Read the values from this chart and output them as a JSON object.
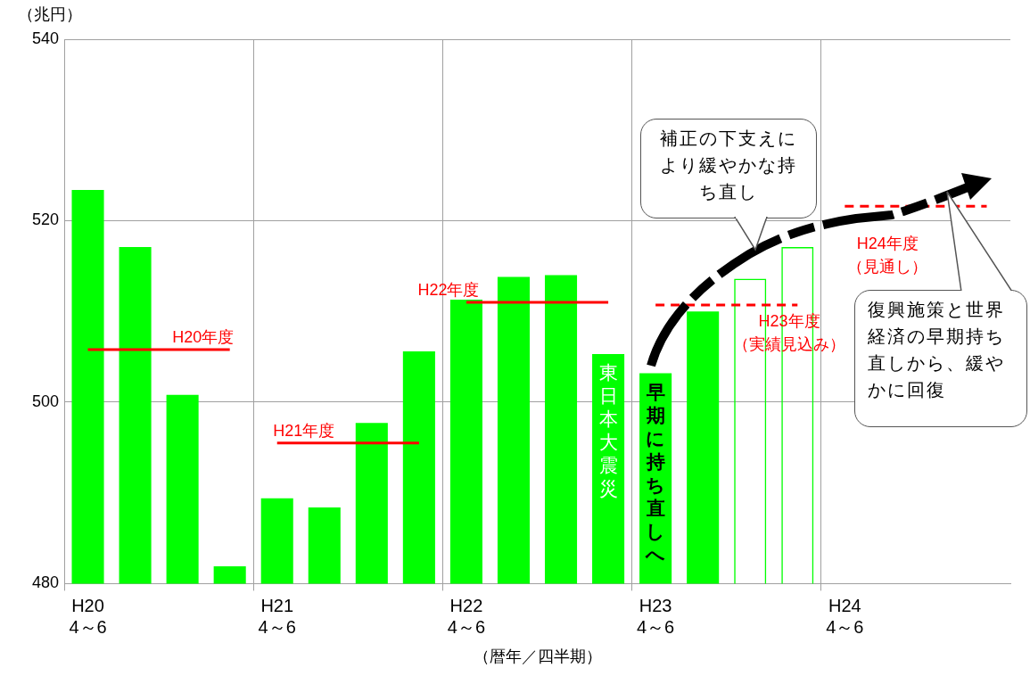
{
  "chart_data": {
    "type": "bar",
    "ylabel": "（兆円）",
    "xlabel": "（暦年／四半期）",
    "categories": [
      "H20\n4～6",
      null,
      null,
      null,
      "H21\n4～6",
      null,
      null,
      null,
      "H22\n4～6",
      null,
      null,
      null,
      "H23\n4～6",
      null,
      null,
      null,
      "H24\n4～6",
      null,
      null,
      null
    ],
    "series": [
      {
        "color": "#00ff00",
        "values": [
          523.4,
          517.1,
          500.8,
          481.9,
          489.4,
          488.4,
          497.7,
          505.6,
          511.3,
          513.8,
          514.0,
          505.3,
          503.2,
          510.0,
          null,
          null,
          null,
          null,
          null,
          null
        ]
      },
      {
        "color": "#00ff00",
        "line_style": "dashed",
        "values": [
          null,
          null,
          null,
          null,
          null,
          null,
          null,
          null,
          null,
          null,
          null,
          null,
          null,
          null,
          513.6,
          517.1,
          null,
          null,
          null,
          null
        ]
      },
      {
        "type": "line",
        "name": "H20年度",
        "color": "#ff0000",
        "line_style": "solid",
        "values": [
          505.8,
          505.8,
          505.8,
          505.8,
          null,
          null,
          null,
          null,
          null,
          null,
          null,
          null,
          null,
          null,
          null,
          null,
          null,
          null,
          null,
          null
        ]
      },
      {
        "type": "line",
        "name": "H21年度",
        "color": "#ff0000",
        "line_style": "solid",
        "values": [
          null,
          null,
          null,
          null,
          495.5,
          495.5,
          495.5,
          495.5,
          null,
          null,
          null,
          null,
          null,
          null,
          null,
          null,
          null,
          null,
          null,
          null
        ]
      },
      {
        "type": "line",
        "name": "H22年度",
        "color": "#ff0000",
        "line_style": "solid",
        "values": [
          null,
          null,
          null,
          null,
          null,
          null,
          null,
          null,
          511.0,
          511.0,
          511.0,
          511.0,
          null,
          null,
          null,
          null,
          null,
          null,
          null,
          null
        ]
      },
      {
        "type": "line",
        "name": "H23年度（実績見込み）",
        "color": "#ff0000",
        "line_style": "dashed",
        "values": [
          null,
          null,
          null,
          null,
          null,
          null,
          null,
          null,
          null,
          null,
          null,
          null,
          510.7,
          510.7,
          510.7,
          510.7,
          null,
          null,
          null,
          null
        ]
      },
      {
        "type": "line",
        "name": "H24年度（見通し）",
        "color": "#ff0000",
        "line_style": "dashed",
        "values": [
          null,
          null,
          null,
          null,
          null,
          null,
          null,
          null,
          null,
          null,
          null,
          null,
          null,
          null,
          null,
          null,
          521.6,
          521.6,
          521.6,
          521.6
        ]
      }
    ],
    "ylim": [
      480,
      540
    ],
    "yticks": [
      480,
      500,
      520,
      540
    ],
    "grid": true,
    "legend": false,
    "marker": "none",
    "annotations": [
      "東日本大震災",
      "早期に持ち直しへ",
      "補正の下支えにより緩やかな持ち直し",
      "復興施策と世界経済の早期持ち直しから、緩やかに回復"
    ]
  }
}
